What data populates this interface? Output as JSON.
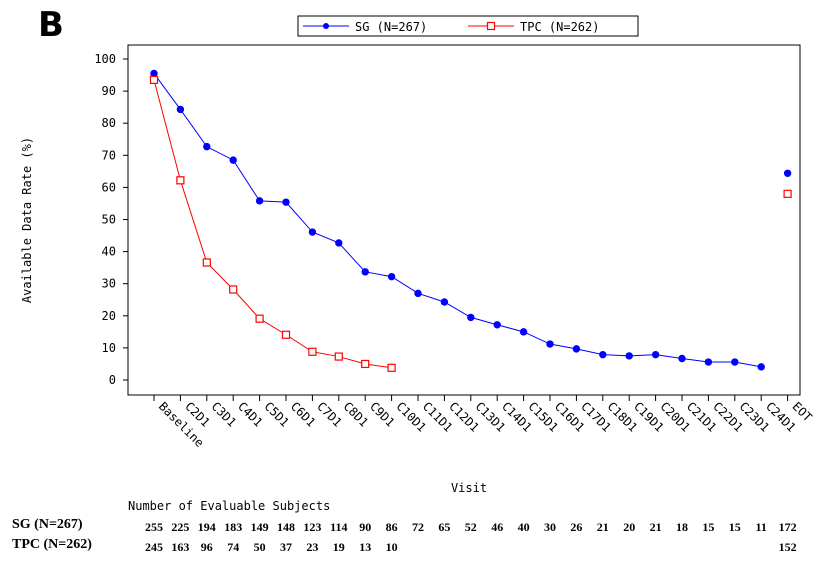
{
  "panel_label": "B",
  "chart_data": {
    "type": "line",
    "xlabel": "Visit",
    "ylabel": "Available Data Rate (%)",
    "ylim": [
      0,
      100
    ],
    "yticks": [
      0,
      10,
      20,
      30,
      40,
      50,
      60,
      70,
      80,
      90,
      100
    ],
    "categories": [
      "Baseline",
      "C2D1",
      "C3D1",
      "C4D1",
      "C5D1",
      "C6D1",
      "C7D1",
      "C8D1",
      "C9D1",
      "C10D1",
      "C11D1",
      "C12D1",
      "C13D1",
      "C14D1",
      "C15D1",
      "C16D1",
      "C17D1",
      "C18D1",
      "C19D1",
      "C20D1",
      "C21D1",
      "C22D1",
      "C23D1",
      "C24D1",
      "EOT"
    ],
    "series": [
      {
        "name": "SG (N=267)",
        "color": "#0000ff",
        "marker": "filled-circle",
        "values": [
          95.5,
          84.3,
          72.7,
          68.5,
          55.8,
          55.4,
          46.1,
          42.7,
          33.7,
          32.2,
          27.0,
          24.3,
          19.5,
          17.2,
          15.0,
          11.2,
          9.7,
          7.9,
          7.5,
          7.9,
          6.7,
          5.6,
          5.6,
          4.1,
          64.4
        ],
        "connected_through_index": 23
      },
      {
        "name": "TPC (N=262)",
        "color": "#ff0000",
        "marker": "open-square",
        "values": [
          93.5,
          62.2,
          36.6,
          28.2,
          19.1,
          14.1,
          8.8,
          7.3,
          5.0,
          3.8,
          null,
          null,
          null,
          null,
          null,
          null,
          null,
          null,
          null,
          null,
          null,
          null,
          null,
          null,
          58.0
        ],
        "connected_through_index": 9
      }
    ]
  },
  "subjects_table": {
    "title": "Number of Evaluable Subjects",
    "rows": [
      {
        "label": "SG (N=267)",
        "values": [
          "255",
          "225",
          "194",
          "183",
          "149",
          "148",
          "123",
          "114",
          "90",
          "86",
          "72",
          "65",
          "52",
          "46",
          "40",
          "30",
          "26",
          "21",
          "20",
          "21",
          "18",
          "15",
          "15",
          "11",
          "172"
        ]
      },
      {
        "label": "TPC (N=262)",
        "values": [
          "245",
          "163",
          "96",
          "74",
          "50",
          "37",
          "23",
          "19",
          "13",
          "10",
          "",
          "",
          "",
          "",
          "",
          "",
          "",
          "",
          "",
          "",
          "",
          "",
          "",
          "",
          "152"
        ]
      }
    ]
  }
}
